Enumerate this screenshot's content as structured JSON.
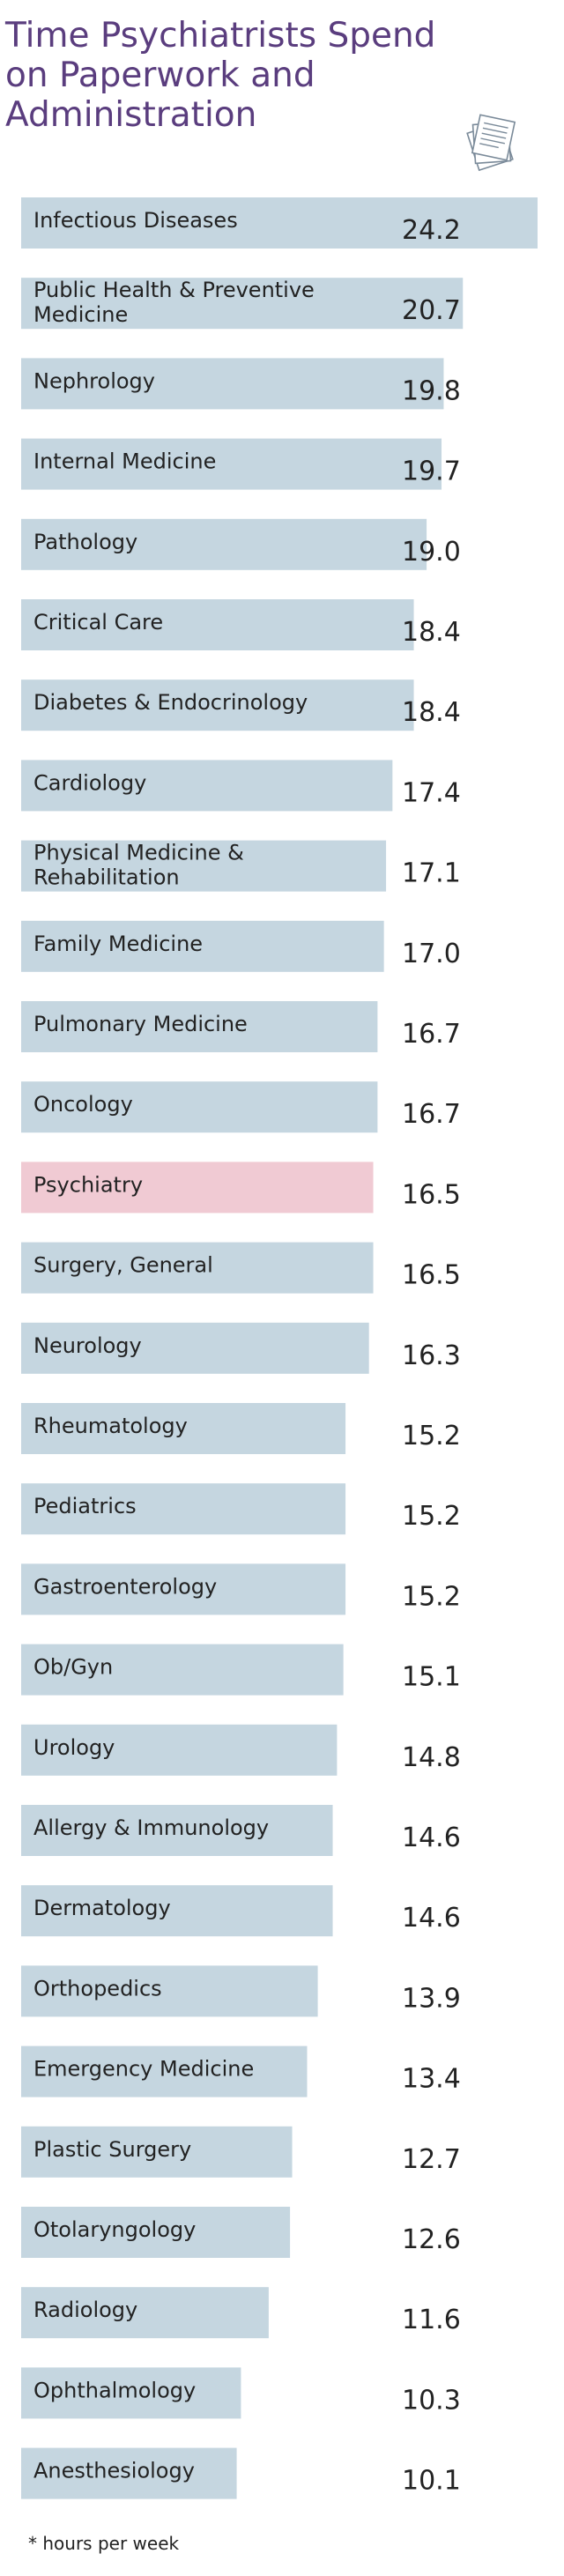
{
  "title": "Time Psychiatrists Spend on Paperwork and Administration",
  "footnote": "* hours per week",
  "colors": {
    "bar": "#c5d6e0",
    "highlight_bar": "#f0cad3",
    "highlight_text": "#b23a5e",
    "title": "#5a3d7e",
    "text": "#222222"
  },
  "icons": {
    "title_icon": "paperwork-stack-icon"
  },
  "chart_data": {
    "type": "bar",
    "orientation": "horizontal",
    "categories": [
      "Infectious Diseases",
      "Public Health & Preventive Medicine",
      "Nephrology",
      "Internal Medicine",
      "Pathology",
      "Critical Care",
      "Diabetes & Endocrinology",
      "Cardiology",
      "Physical Medicine & Rehabilitation",
      "Family Medicine",
      "Pulmonary Medicine",
      "Oncology",
      "Psychiatry",
      "Surgery, General",
      "Neurology",
      "Rheumatology",
      "Pediatrics",
      "Gastroenterology",
      "Ob/Gyn",
      "Urology",
      "Allergy & Immunology",
      "Dermatology",
      "Orthopedics",
      "Emergency Medicine",
      "Plastic Surgery",
      "Otolaryngology",
      "Radiology",
      "Ophthalmology",
      "Anesthesiology"
    ],
    "values": [
      24.2,
      20.7,
      19.8,
      19.7,
      19.0,
      18.4,
      18.4,
      17.4,
      17.1,
      17.0,
      16.7,
      16.7,
      16.5,
      16.5,
      16.3,
      15.2,
      15.2,
      15.2,
      15.1,
      14.8,
      14.6,
      14.6,
      13.9,
      13.4,
      12.7,
      12.6,
      11.6,
      10.3,
      10.1
    ],
    "value_labels": [
      "24.2",
      "20.7",
      "19.8",
      "19.7",
      "19.0",
      "18.4",
      "18.4",
      "17.4",
      "17.1",
      "17.0",
      "16.7",
      "16.7",
      "16.5",
      "16.5",
      "16.3",
      "15.2",
      "15.2",
      "15.2",
      "15.1",
      "14.8",
      "14.6",
      "14.6",
      "13.9",
      "13.4",
      "12.7",
      "12.6",
      "11.6",
      "10.3",
      "10.1"
    ],
    "highlight": "Psychiatry",
    "unit": "hours per week",
    "xlim": [
      0,
      24.2
    ],
    "grid": false,
    "legend": "none"
  }
}
